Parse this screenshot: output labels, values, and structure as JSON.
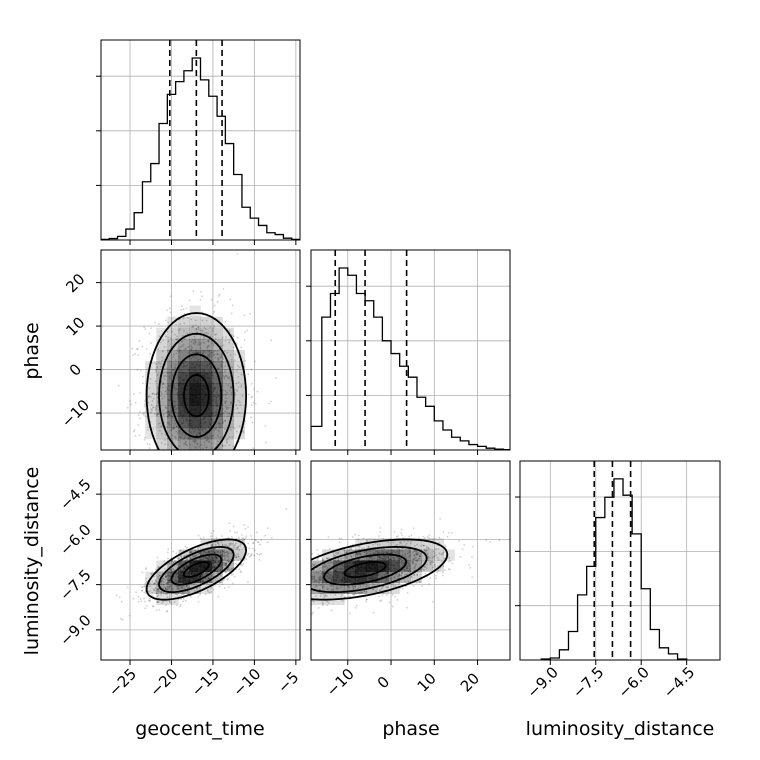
{
  "chart_data": {
    "type": "corner",
    "parameters": [
      "geocent_time",
      "phase",
      "luminosity_distance"
    ],
    "ranges": {
      "geocent_time": [
        -28.5,
        -4.5
      ],
      "phase": [
        -18.5,
        27.5
      ],
      "luminosity_distance": [
        -10,
        -3.4
      ]
    },
    "ticks": {
      "geocent_time": [
        -25,
        -20,
        -15,
        -10,
        -5
      ],
      "phase": [
        -10,
        0,
        10,
        20
      ],
      "luminosity_distance": [
        -9.0,
        -7.5,
        -6.0,
        -4.5
      ]
    },
    "tick_labels": {
      "geocent_time": [
        "−25",
        "−20",
        "−15",
        "−10",
        "−5"
      ],
      "phase": [
        "−10",
        "0",
        "10",
        "20"
      ],
      "luminosity_distance": [
        "−9.0",
        "−7.5",
        "−6.0",
        "−4.5"
      ]
    },
    "quantiles": {
      "geocent_time": [
        -20.2,
        -17.0,
        -13.9
      ],
      "phase": [
        -12.9,
        -6.0,
        3.6
      ],
      "luminosity_distance": [
        -7.55,
        -6.95,
        -6.35
      ]
    },
    "histograms": {
      "geocent_time": {
        "edges": [
          -28.5,
          -27.5,
          -26.5,
          -25.5,
          -24.5,
          -23.5,
          -22.5,
          -21.5,
          -20.5,
          -19.5,
          -18.5,
          -17.5,
          -16.5,
          -15.5,
          -14.5,
          -13.5,
          -12.5,
          -11.5,
          -10.5,
          -9.5,
          -8.5,
          -7.5,
          -6.5,
          -5.5,
          -4.5
        ],
        "counts": [
          0.003,
          0.008,
          0.02,
          0.06,
          0.15,
          0.32,
          0.42,
          0.64,
          0.8,
          0.87,
          0.93,
          1.0,
          0.88,
          0.79,
          0.68,
          0.53,
          0.36,
          0.18,
          0.12,
          0.08,
          0.04,
          0.03,
          0.01,
          0.003
        ]
      },
      "phase": {
        "edges": [
          -18.5,
          -16,
          -14,
          -12,
          -10,
          -8,
          -6,
          -4,
          -2,
          0,
          2,
          4,
          6,
          8,
          10,
          12,
          14,
          16,
          18,
          20,
          22,
          24,
          26,
          27.5
        ],
        "counts": [
          0.13,
          0.73,
          0.86,
          1.0,
          0.96,
          0.86,
          0.82,
          0.73,
          0.6,
          0.53,
          0.46,
          0.4,
          0.29,
          0.24,
          0.16,
          0.11,
          0.07,
          0.05,
          0.03,
          0.02,
          0.01,
          0.005,
          0.002
        ]
      },
      "luminosity_distance": {
        "edges": [
          -9.3,
          -9.0,
          -8.7,
          -8.4,
          -8.1,
          -7.8,
          -7.5,
          -7.2,
          -6.9,
          -6.6,
          -6.3,
          -6.0,
          -5.7,
          -5.4,
          -5.1,
          -4.8,
          -4.5
        ],
        "counts": [
          0.005,
          0.01,
          0.05,
          0.14,
          0.32,
          0.46,
          0.7,
          0.8,
          0.89,
          0.81,
          0.62,
          0.35,
          0.15,
          0.06,
          0.03,
          0.005
        ]
      }
    },
    "density_2d": {
      "phase_vs_geocent_time": {
        "mean": [
          -17,
          -6
        ],
        "std": [
          3.0,
          9.5
        ],
        "corr": 0.0
      },
      "luminosity_distance_vs_geocent_time": {
        "mean": [
          -17,
          -7.0
        ],
        "std": [
          3.0,
          0.5
        ],
        "corr": 0.65
      },
      "luminosity_distance_vs_phase": {
        "mean": [
          -6,
          -7.0
        ],
        "std": [
          9.5,
          0.5
        ],
        "corr": 0.5
      }
    },
    "grid": true,
    "histogram_color": "#000000",
    "contour_color": "#000000",
    "point_color": "#000000"
  }
}
